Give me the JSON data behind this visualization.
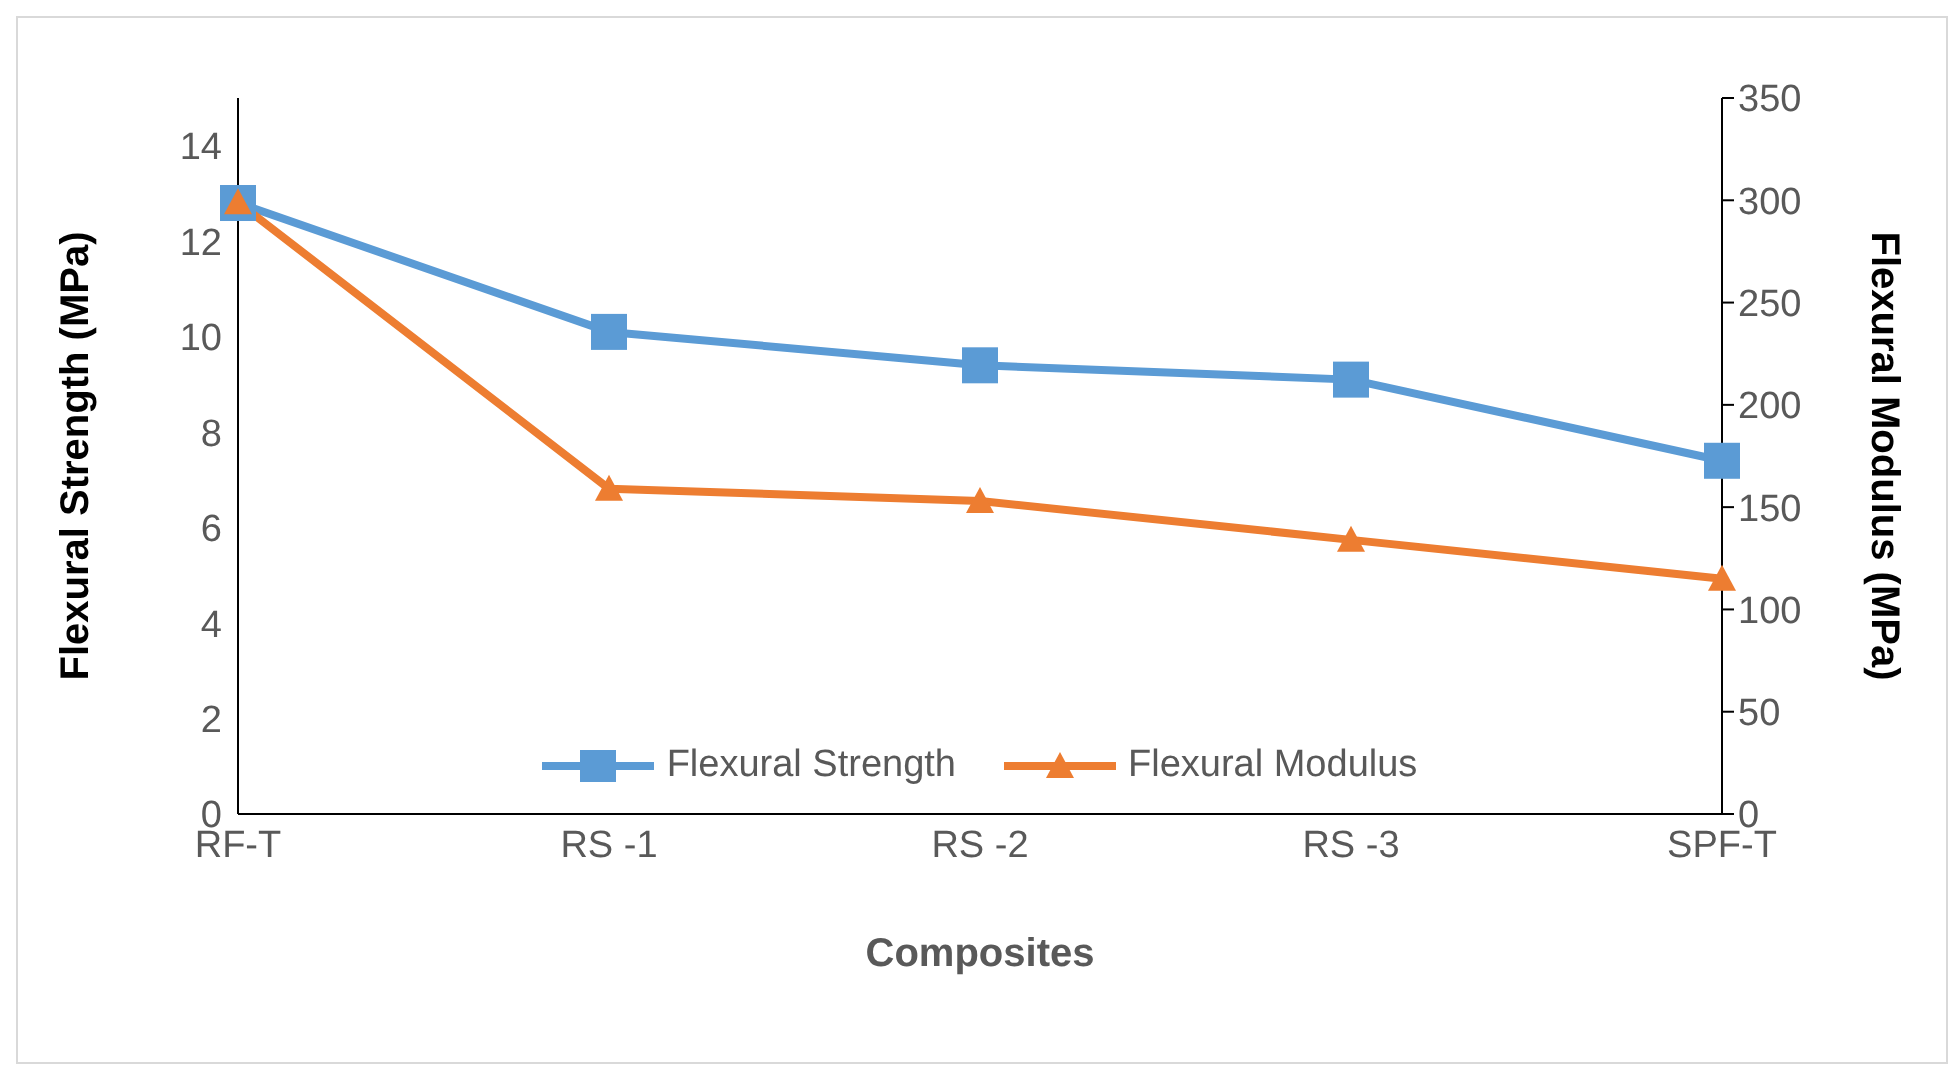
{
  "chart_data": {
    "type": "line",
    "xlabel": "Composites",
    "ylabel": "Flexural Strength (MPa)",
    "y2label": "Flexural Modulus (MPa)",
    "categories": [
      "RF-T",
      "RS -1",
      "RS -2",
      "RS -3",
      "SPF-T"
    ],
    "series": [
      {
        "name": "Flexural Strength",
        "color": "#5b9bd5",
        "marker": "square",
        "values": [
          12.8,
          10.1,
          9.4,
          9.1,
          7.4
        ]
      },
      {
        "name": "Flexural Modulus",
        "color": "#ed7d31",
        "marker": "triangle",
        "axis": "y2",
        "values": [
          299,
          159,
          153,
          134,
          115
        ]
      }
    ],
    "ylim": [
      0,
      15
    ],
    "yticks": [
      0,
      2,
      4,
      6,
      8,
      10,
      12,
      14
    ],
    "y2lim": [
      0,
      350
    ],
    "y2ticks": [
      0,
      50,
      100,
      150,
      200,
      250,
      300,
      350
    ],
    "grid": false,
    "legend": "bottom"
  }
}
